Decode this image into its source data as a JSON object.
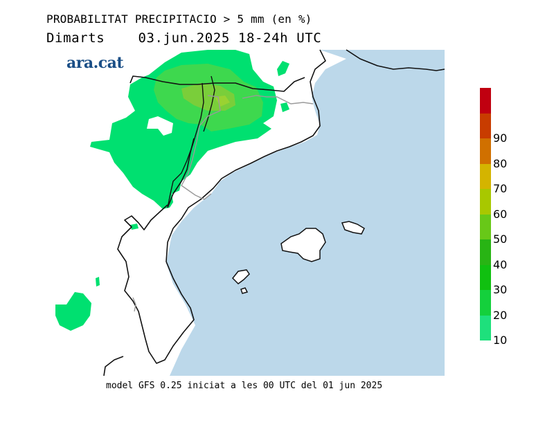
{
  "header": {
    "title": "PROBABILITAT PRECIPITACIO > 5 mm (en %)",
    "day": "Dimarts",
    "date": "03.jun.2025",
    "period": "18-24h UTC"
  },
  "logo": {
    "text": "ara.cat"
  },
  "footer": {
    "text": "model GFS 0.25 iniciat a les 00 UTC del 01 jun 2025"
  },
  "legend": {
    "bands": [
      {
        "label": "10",
        "color": "#1ee07c"
      },
      {
        "label": "20",
        "color": "#14d03c"
      },
      {
        "label": "30",
        "color": "#10c010"
      },
      {
        "label": "40",
        "color": "#28b414"
      },
      {
        "label": "50",
        "color": "#68c818"
      },
      {
        "label": "60",
        "color": "#a8c800"
      },
      {
        "label": "70",
        "color": "#d4b400"
      },
      {
        "label": "80",
        "color": "#d07000"
      },
      {
        "label": "90",
        "color": "#c83c00"
      },
      {
        "label": "",
        "color": "#c00010"
      }
    ]
  },
  "map": {
    "sea_color": "#bcd8ea",
    "land_color": "#ffffff",
    "precip_colors": [
      "#00e070",
      "#3ed84e",
      "#7ace3a"
    ]
  }
}
